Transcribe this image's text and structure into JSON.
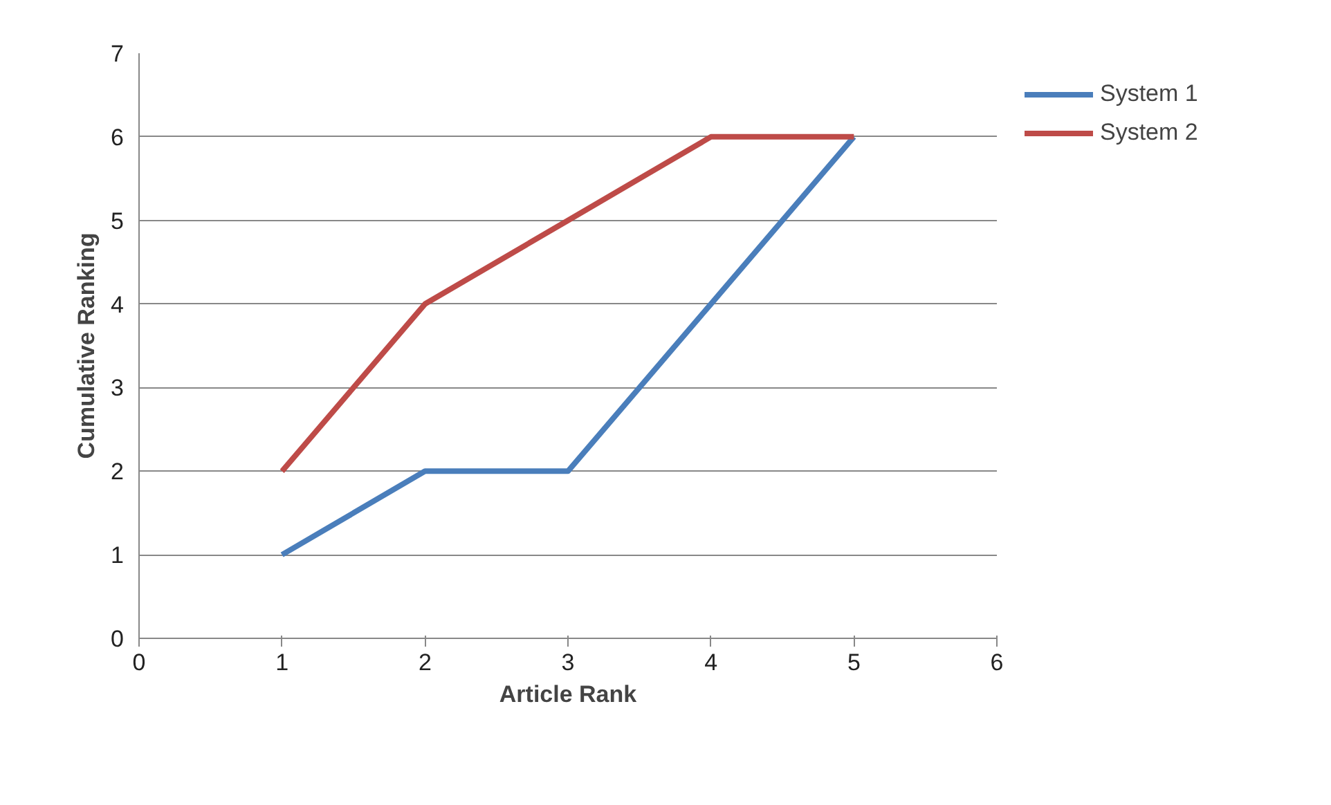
{
  "chart_data": {
    "type": "line",
    "xlabel": "Article Rank",
    "ylabel": "Cumulative Ranking",
    "x": [
      1,
      2,
      3,
      4,
      5
    ],
    "series": [
      {
        "name": "System 1",
        "color": "#4a7ebb",
        "values": [
          1,
          2,
          2,
          4,
          6
        ]
      },
      {
        "name": "System 2",
        "color": "#be4b48",
        "values": [
          2,
          4,
          5,
          6,
          6
        ]
      }
    ],
    "xlim": [
      0,
      6
    ],
    "xticks": [
      0,
      1,
      2,
      3,
      4,
      5,
      6
    ],
    "ylim": [
      0,
      7
    ],
    "yticks": [
      0,
      1,
      2,
      3,
      4,
      5,
      6,
      7
    ],
    "grid": "y",
    "legend": "right",
    "marker": "none",
    "line_style": "solid"
  }
}
